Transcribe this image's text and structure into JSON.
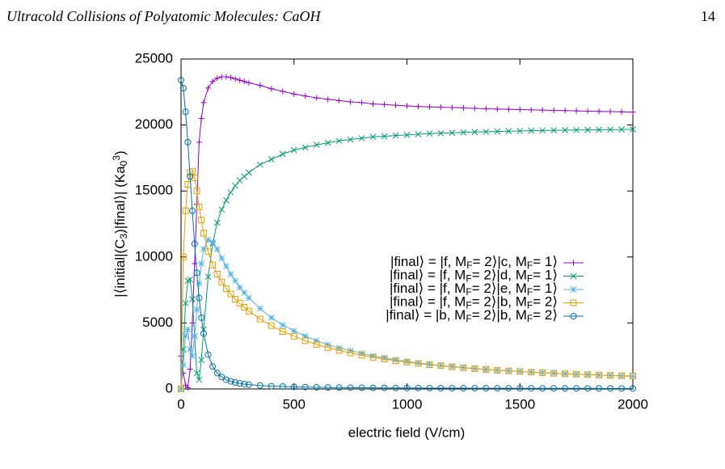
{
  "header": {
    "title": "Ultracold Collisions of Polyatomic Molecules: CaOH",
    "page": "14"
  },
  "chart_data": {
    "type": "line",
    "xlabel": "electric field (V/cm)",
    "ylabel": "|⟨initial|(C_3)|final⟩| (Ka_0^3)",
    "xlim": [
      0,
      2000
    ],
    "ylim": [
      0,
      25000
    ],
    "xticks": [
      0,
      500,
      1000,
      1500,
      2000
    ],
    "yticks": [
      0,
      5000,
      10000,
      15000,
      20000,
      25000
    ],
    "legend": "right",
    "x": [
      0,
      10,
      20,
      30,
      40,
      50,
      60,
      70,
      80,
      90,
      100,
      120,
      140,
      160,
      180,
      200,
      220,
      240,
      260,
      280,
      300,
      350,
      400,
      450,
      500,
      550,
      600,
      650,
      700,
      750,
      800,
      850,
      900,
      950,
      1000,
      1050,
      1100,
      1150,
      1200,
      1250,
      1300,
      1350,
      1400,
      1450,
      1500,
      1550,
      1600,
      1650,
      1700,
      1750,
      1800,
      1850,
      1900,
      1950,
      2000
    ],
    "series": [
      {
        "name": "|final⟩ = |f, M_F= 2⟩|c, M_F= 1⟩",
        "color": "#9400d3",
        "marker": "plus",
        "values": [
          2500,
          1200,
          300,
          100,
          1500,
          5000,
          9500,
          14000,
          18700,
          20500,
          21700,
          22800,
          23300,
          23550,
          23650,
          23650,
          23600,
          23500,
          23400,
          23300,
          23200,
          23000,
          22750,
          22550,
          22350,
          22200,
          22050,
          21950,
          21850,
          21750,
          21700,
          21600,
          21550,
          21500,
          21450,
          21400,
          21380,
          21350,
          21320,
          21290,
          21260,
          21240,
          21210,
          21190,
          21170,
          21150,
          21130,
          21110,
          21090,
          21070,
          21050,
          21030,
          21020,
          21000,
          20980
        ]
      },
      {
        "name": "|final⟩ = |f, M_F= 2⟩|d, M_F= 1⟩",
        "color": "#009e73",
        "marker": "cross",
        "values": [
          0,
          3000,
          6500,
          8200,
          8300,
          6800,
          4000,
          1200,
          700,
          2200,
          4500,
          8500,
          11000,
          12600,
          13600,
          14300,
          14900,
          15400,
          15800,
          16100,
          16400,
          17000,
          17400,
          17800,
          18100,
          18300,
          18500,
          18650,
          18800,
          18900,
          19000,
          19100,
          19150,
          19200,
          19250,
          19300,
          19350,
          19380,
          19410,
          19440,
          19470,
          19490,
          19510,
          19530,
          19550,
          19570,
          19580,
          19600,
          19610,
          19620,
          19630,
          19640,
          19650,
          19660,
          19670
        ]
      },
      {
        "name": "|final⟩ = |f, M_F= 2⟩|e, M_F= 1⟩",
        "color": "#56b4e9",
        "marker": "star",
        "values": [
          0,
          1800,
          4000,
          4500,
          3000,
          2500,
          4000,
          6000,
          8000,
          9500,
          10600,
          11300,
          11100,
          10600,
          9900,
          9300,
          8700,
          8200,
          7700,
          7300,
          6900,
          6100,
          5400,
          4850,
          4400,
          4000,
          3650,
          3350,
          3100,
          2900,
          2700,
          2500,
          2350,
          2200,
          2080,
          1970,
          1870,
          1780,
          1700,
          1620,
          1550,
          1480,
          1420,
          1370,
          1320,
          1270,
          1230,
          1190,
          1150,
          1110,
          1080,
          1050,
          1020,
          990,
          960
        ]
      },
      {
        "name": "|final⟩ = |f, M_F= 2⟩|b, M_F= 2⟩",
        "color": "#e69f00",
        "marker": "square",
        "values": [
          0,
          10000,
          13500,
          15500,
          16400,
          16500,
          16000,
          15000,
          13800,
          12800,
          11800,
          10400,
          9400,
          8700,
          8100,
          7600,
          7200,
          6800,
          6500,
          6200,
          5900,
          5300,
          4800,
          4350,
          4000,
          3650,
          3380,
          3130,
          2920,
          2730,
          2560,
          2400,
          2270,
          2140,
          2030,
          1930,
          1840,
          1760,
          1680,
          1610,
          1540,
          1480,
          1420,
          1370,
          1320,
          1270,
          1230,
          1190,
          1150,
          1120,
          1090,
          1060,
          1030,
          1000,
          980
        ]
      },
      {
        "name": "|final⟩ = |b, M_F= 2⟩|b, M_F= 2⟩",
        "color": "#0072b2",
        "marker": "circle",
        "values": [
          23400,
          22800,
          21000,
          18700,
          16100,
          13500,
          11000,
          8800,
          6900,
          5400,
          4200,
          2600,
          1700,
          1200,
          900,
          700,
          580,
          490,
          420,
          370,
          330,
          260,
          210,
          180,
          160,
          140,
          125,
          115,
          105,
          95,
          90,
          85,
          80,
          75,
          70,
          68,
          65,
          62,
          60,
          58,
          56,
          54,
          52,
          50,
          48,
          47,
          46,
          45,
          44,
          43,
          42,
          41,
          40,
          39,
          38
        ]
      }
    ]
  }
}
